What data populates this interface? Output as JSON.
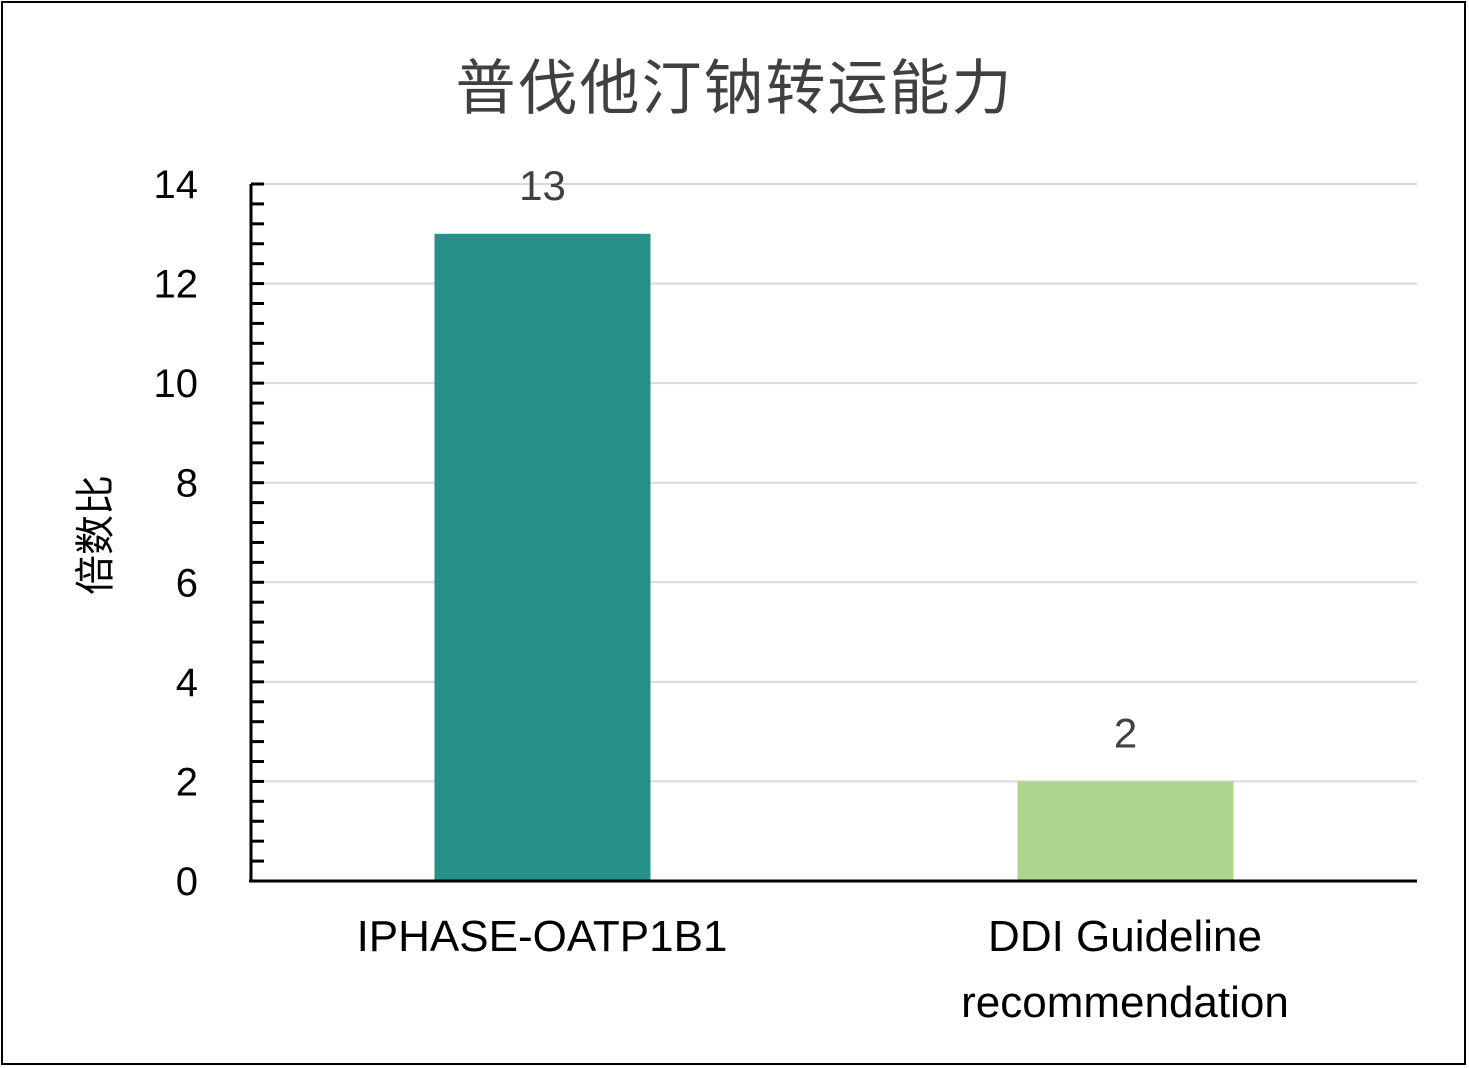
{
  "chart_data": {
    "type": "bar",
    "title": "普伐他汀钠转运能力",
    "xlabel": "",
    "ylabel": "倍数比",
    "categories": [
      "IPHASE-OATP1B1",
      "DDI Guideline recommendation"
    ],
    "values": [
      13,
      2
    ],
    "data_labels": [
      "13",
      "2"
    ],
    "colors": [
      "#269188",
      "#acd68e"
    ],
    "ylim": [
      0,
      14
    ],
    "yticks": [
      "0",
      "2",
      "4",
      "6",
      "8",
      "10",
      "12",
      "14"
    ],
    "grid": true,
    "legend": null
  }
}
